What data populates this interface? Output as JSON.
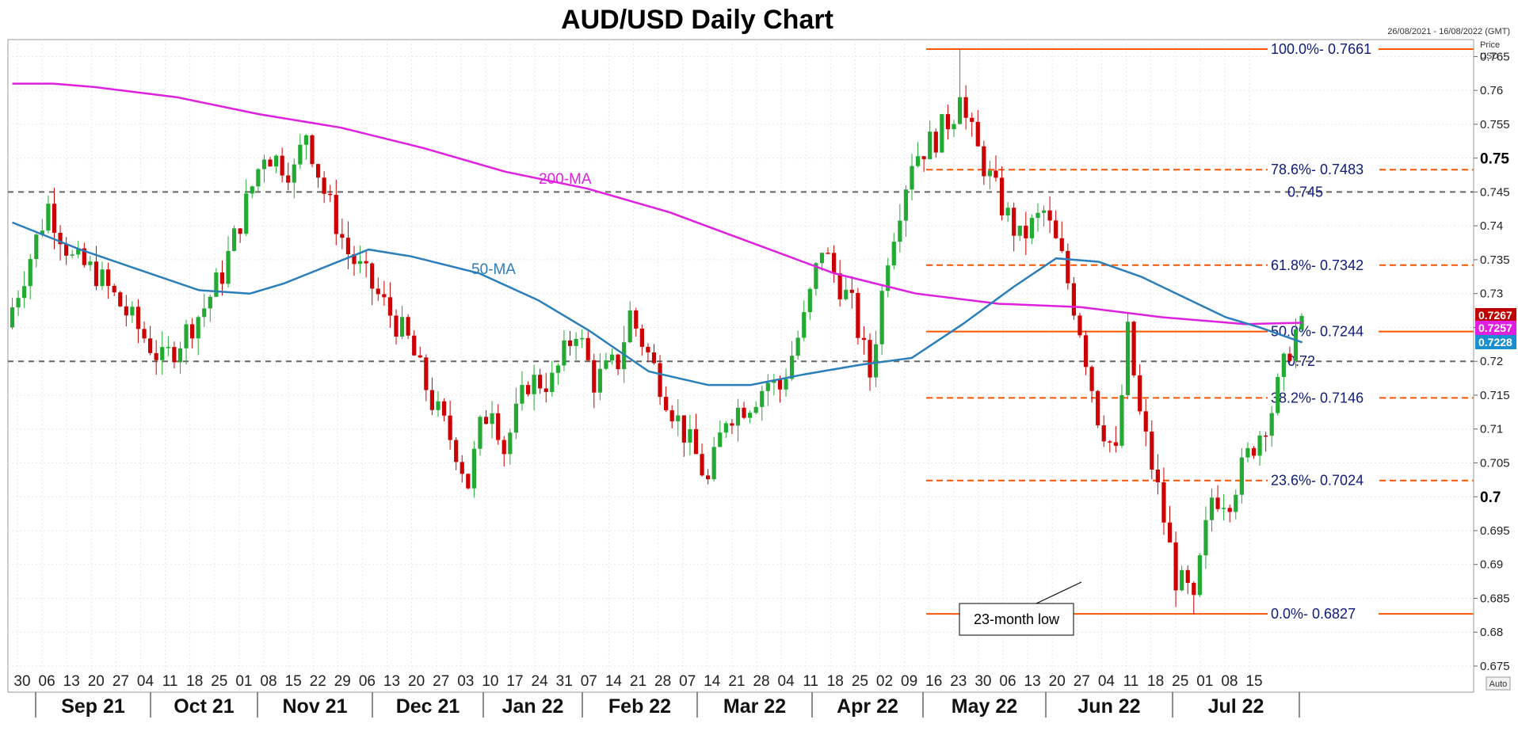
{
  "chart_data": {
    "type": "candlestick",
    "title": "AUD/USD Daily Chart",
    "date_range": "26/08/2021 - 16/08/2022 (GMT)",
    "axis_caption": [
      "Price",
      "USD"
    ],
    "ylim": [
      0.6715,
      0.7695
    ],
    "auto_label": "Auto",
    "y_ticks": [
      {
        "value": 0.765,
        "label": "0.765",
        "bold": false
      },
      {
        "value": 0.76,
        "label": "0.76",
        "bold": false
      },
      {
        "value": 0.755,
        "label": "0.755",
        "bold": false
      },
      {
        "value": 0.75,
        "label": "0.75",
        "bold": true
      },
      {
        "value": 0.745,
        "label": "0.745",
        "bold": false
      },
      {
        "value": 0.74,
        "label": "0.74",
        "bold": false
      },
      {
        "value": 0.735,
        "label": "0.735",
        "bold": false
      },
      {
        "value": 0.73,
        "label": "0.73",
        "bold": false
      },
      {
        "value": 0.725,
        "label": "0.725",
        "bold": false
      },
      {
        "value": 0.72,
        "label": "0.72",
        "bold": false
      },
      {
        "value": 0.715,
        "label": "0.715",
        "bold": false
      },
      {
        "value": 0.71,
        "label": "0.71",
        "bold": false
      },
      {
        "value": 0.705,
        "label": "0.705",
        "bold": false
      },
      {
        "value": 0.7,
        "label": "0.7",
        "bold": true
      },
      {
        "value": 0.695,
        "label": "0.695",
        "bold": false
      },
      {
        "value": 0.69,
        "label": "0.69",
        "bold": false
      },
      {
        "value": 0.685,
        "label": "0.685",
        "bold": false
      },
      {
        "value": 0.68,
        "label": "0.68",
        "bold": false
      },
      {
        "value": 0.675,
        "label": "0.675",
        "bold": false
      }
    ],
    "x_ticks": [
      "30",
      "06",
      "13",
      "20",
      "27",
      "04",
      "11",
      "18",
      "25",
      "01",
      "08",
      "15",
      "22",
      "29",
      "06",
      "13",
      "20",
      "27",
      "03",
      "10",
      "17",
      "24",
      "31",
      "07",
      "14",
      "21",
      "28",
      "07",
      "14",
      "21",
      "28",
      "04",
      "11",
      "18",
      "25",
      "02",
      "09",
      "16",
      "23",
      "30",
      "06",
      "13",
      "20",
      "27",
      "04",
      "11",
      "18",
      "25",
      "01",
      "08",
      "15"
    ],
    "months": [
      "Sep 21",
      "Oct 21",
      "Nov 21",
      "Dec 21",
      "Jan 22",
      "Feb 22",
      "Mar 22",
      "Apr 22",
      "May 22",
      "Jun 22",
      "Jul 22"
    ],
    "fib_levels": [
      {
        "value": 0.7661,
        "label": "100.0%- 0.7661",
        "style": "solid"
      },
      {
        "value": 0.7483,
        "label": "78.6%- 0.7483",
        "style": "dashed"
      },
      {
        "value": 0.7342,
        "label": "61.8%- 0.7342",
        "style": "dashed"
      },
      {
        "value": 0.7244,
        "label": "50.0%- 0.7244",
        "style": "solid"
      },
      {
        "value": 0.7146,
        "label": "38.2%- 0.7146",
        "style": "dashed"
      },
      {
        "value": 0.7024,
        "label": "23.6%- 0.7024",
        "style": "dashed"
      },
      {
        "value": 0.6827,
        "label": "0.0%- 0.6827",
        "style": "solid"
      }
    ],
    "horizontal_levels": [
      {
        "value": 0.745,
        "label": "0.745"
      },
      {
        "value": 0.72,
        "label": "0.72"
      }
    ],
    "price_tags": [
      {
        "value": 0.7267,
        "label": "0.7267",
        "color": "#c00000"
      },
      {
        "value": 0.7257,
        "label": "0.7257",
        "color": "#e020e0"
      },
      {
        "value": 0.7228,
        "label": "0.7228",
        "color": "#1a8fd0"
      }
    ],
    "ma_labels": [
      {
        "label": "200-MA",
        "color": "#e020e0"
      },
      {
        "label": "50-MA",
        "color": "#2a7fba"
      }
    ],
    "annotation": "23-month low",
    "colors": {
      "up": "#22aa33",
      "down": "#cc0000",
      "ma200": "#e020e0",
      "ma50": "#2a7fba",
      "fib": "#ff5500",
      "level": "#666666",
      "fib_text": "#0d1b7a"
    },
    "series": {
      "ma200_points": [
        [
          0,
          0.761
        ],
        [
          5,
          0.761
        ],
        [
          10,
          0.7605
        ],
        [
          20,
          0.759
        ],
        [
          30,
          0.7565
        ],
        [
          40,
          0.7545
        ],
        [
          50,
          0.7515
        ],
        [
          60,
          0.748
        ],
        [
          70,
          0.7455
        ],
        [
          80,
          0.742
        ],
        [
          90,
          0.7375
        ],
        [
          100,
          0.733
        ],
        [
          110,
          0.73
        ],
        [
          120,
          0.7285
        ],
        [
          130,
          0.728
        ],
        [
          140,
          0.7265
        ],
        [
          150,
          0.7255
        ],
        [
          157,
          0.7257
        ]
      ],
      "ma50_points": [
        [
          0,
          0.7405
        ],
        [
          8,
          0.7365
        ],
        [
          15,
          0.7335
        ],
        [
          22,
          0.7305
        ],
        [
          28,
          0.73
        ],
        [
          32,
          0.7315
        ],
        [
          38,
          0.7345
        ],
        [
          42,
          0.7365
        ],
        [
          47,
          0.7355
        ],
        [
          55,
          0.733
        ],
        [
          62,
          0.729
        ],
        [
          68,
          0.7245
        ],
        [
          75,
          0.7185
        ],
        [
          82,
          0.7165
        ],
        [
          87,
          0.7165
        ],
        [
          93,
          0.718
        ],
        [
          100,
          0.7195
        ],
        [
          106,
          0.7205
        ],
        [
          112,
          0.7255
        ],
        [
          118,
          0.731
        ],
        [
          123,
          0.7352
        ],
        [
          128,
          0.7347
        ],
        [
          133,
          0.7325
        ],
        [
          138,
          0.7295
        ],
        [
          143,
          0.7265
        ],
        [
          147,
          0.725
        ],
        [
          152,
          0.7228
        ]
      ],
      "anchors": [
        [
          0,
          0.728
        ],
        [
          4,
          0.738
        ],
        [
          6,
          0.743
        ],
        [
          10,
          0.735
        ],
        [
          14,
          0.733
        ],
        [
          20,
          0.726
        ],
        [
          25,
          0.72
        ],
        [
          27,
          0.722
        ],
        [
          32,
          0.728
        ],
        [
          35,
          0.733
        ],
        [
          42,
          0.751
        ],
        [
          47,
          0.748
        ],
        [
          49,
          0.754
        ],
        [
          52,
          0.745
        ],
        [
          56,
          0.736
        ],
        [
          60,
          0.731
        ],
        [
          66,
          0.723
        ],
        [
          70,
          0.714
        ],
        [
          74,
          0.707
        ],
        [
          76,
          0.702
        ],
        [
          78,
          0.71
        ],
        [
          80,
          0.714
        ],
        [
          82,
          0.707
        ],
        [
          86,
          0.717
        ],
        [
          90,
          0.717
        ],
        [
          94,
          0.725
        ],
        [
          97,
          0.717
        ],
        [
          101,
          0.72
        ],
        [
          103,
          0.727
        ],
        [
          106,
          0.721
        ],
        [
          110,
          0.713
        ],
        [
          114,
          0.706
        ],
        [
          116,
          0.702
        ],
        [
          119,
          0.712
        ],
        [
          123,
          0.714
        ],
        [
          126,
          0.717
        ],
        [
          128,
          0.716
        ],
        [
          132,
          0.726
        ],
        [
          135,
          0.737
        ],
        [
          137,
          0.733
        ],
        [
          140,
          0.728
        ],
        [
          143,
          0.718
        ],
        [
          146,
          0.736
        ],
        [
          150,
          0.75
        ],
        [
          154,
          0.753
        ],
        [
          158,
          0.758
        ],
        [
          161,
          0.751
        ],
        [
          165,
          0.743
        ],
        [
          168,
          0.738
        ],
        [
          172,
          0.742
        ],
        [
          175,
          0.735
        ],
        [
          178,
          0.725
        ],
        [
          181,
          0.712
        ],
        [
          184,
          0.706
        ],
        [
          186,
          0.724
        ],
        [
          188,
          0.712
        ],
        [
          191,
          0.701
        ],
        [
          194,
          0.688
        ],
        [
          197,
          0.685
        ],
        [
          200,
          0.7
        ],
        [
          203,
          0.7
        ],
        [
          206,
          0.706
        ],
        [
          210,
          0.713
        ],
        [
          213,
          0.722
        ],
        [
          215,
          0.7267
        ]
      ]
    }
  }
}
